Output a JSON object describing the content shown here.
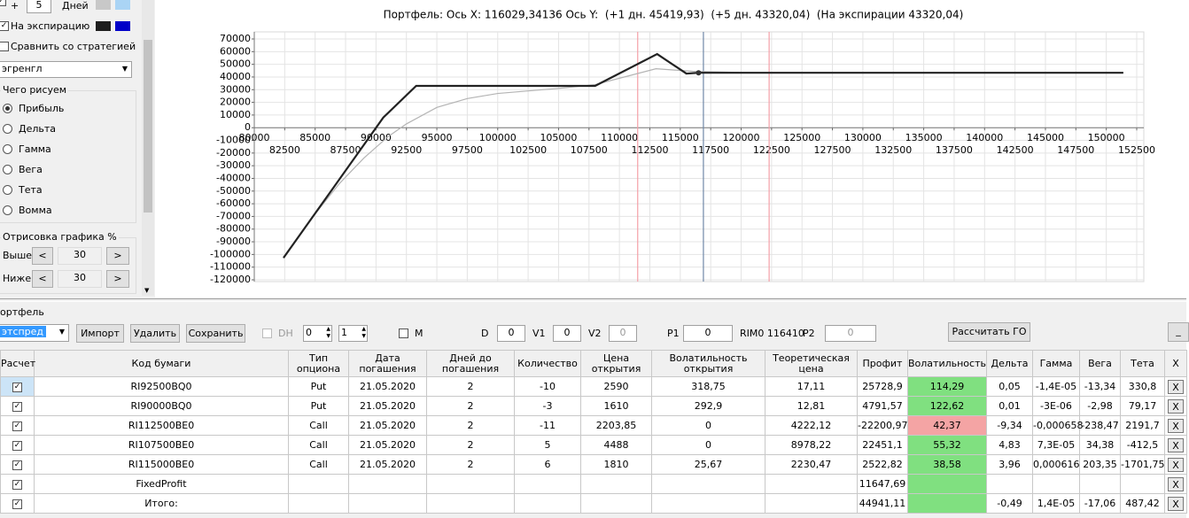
{
  "left_panel": {
    "plus": "+",
    "days_value": "5",
    "days_label": "Дней",
    "expiry": "На экспирацию",
    "compare": "Сравнить со стратегией",
    "strategy": "эгренгл",
    "group_title": "Чего рисуем",
    "options": [
      "Прибыль",
      "Дельта",
      "Гамма",
      "Вега",
      "Тета",
      "Вомма"
    ],
    "selected": 0,
    "range_title": "Отрисовка графика %",
    "above": "Выше",
    "below": "Ниже",
    "above_value": "30",
    "below_value": "30",
    "less": "<",
    "more": ">"
  },
  "chart_data": {
    "type": "line",
    "title": "Портфель: Ось X: 116029,34136 Ось Y:  (+1 дн. 45419,93)  (+5 дн. 43320,04)  (На экспирации 43320,04)",
    "xlim": [
      80000,
      152500
    ],
    "ylim": [
      -120000,
      70000
    ],
    "xticks": [
      80000,
      82500,
      85000,
      87500,
      90000,
      92500,
      95000,
      97500,
      100000,
      102500,
      105000,
      107500,
      110000,
      112500,
      115000,
      117500,
      120000,
      122500,
      125000,
      127500,
      130000,
      132500,
      135000,
      137500,
      140000,
      142500,
      145000,
      147500,
      150000,
      152500
    ],
    "yticks": [
      70000,
      60000,
      50000,
      40000,
      30000,
      20000,
      10000,
      0,
      -10000,
      -20000,
      -30000,
      -40000,
      -50000,
      -60000,
      -70000,
      -80000,
      -90000,
      -100000,
      -110000,
      -120000
    ],
    "grid": true,
    "series": [
      {
        "color": "#b4b4b4",
        "x": [
          82400,
          85000,
          87000,
          89000,
          91000,
          92500,
          95000,
          97500,
          100000,
          105000,
          108000,
          110000,
          113000,
          116000,
          120000,
          122500
        ],
        "values": [
          -102000,
          -68000,
          -44000,
          -24000,
          -7000,
          3000,
          16000,
          23000,
          27000,
          31000,
          34000,
          39000,
          46500,
          44500,
          43600,
          43320
        ]
      },
      {
        "color": "#222222",
        "x": [
          82400,
          90600,
          93300,
          108000,
          113100,
          115500,
          116500,
          151400
        ],
        "values": [
          -102700,
          8000,
          33000,
          33000,
          58100,
          42700,
          43320,
          43320
        ]
      }
    ],
    "vlines": [
      {
        "x": 111500,
        "color": "#f4a0a8"
      },
      {
        "x": 116900,
        "color": "#7088a8"
      },
      {
        "x": 122300,
        "color": "#f4a0a8"
      }
    ],
    "marker": {
      "x": 116500,
      "y": 43320,
      "color": "#333333"
    }
  },
  "toolbar": {
    "section": "ортфель",
    "portfolio": "этспред",
    "import": "Импорт",
    "delete": "Удалить",
    "save": "Сохранить",
    "dh": "DH",
    "spin1": "0",
    "spin2": "1",
    "m": "M",
    "d_label": "D",
    "d_value": "0",
    "v1_label": "V1",
    "v1_value": "0",
    "v2_label": "V2",
    "v2_value": "0",
    "p1_label": "P1",
    "p1_value": "0",
    "rim": "RIM0 116410",
    "p2_label": "P2",
    "p2_value": "0",
    "calc": "Рассчитать ГО",
    "minimize": "_"
  },
  "table": {
    "headers": [
      "Расчет",
      "Код бумаги",
      "Тип опциона",
      "Дата погашения",
      "Дней до погашения",
      "Количество",
      "Цена открытия",
      "Волатильность открытия",
      "Теоретическая цена",
      "Профит",
      "Волатильность",
      "Дельта",
      "Гамма",
      "Вега",
      "Тета",
      "X"
    ],
    "rows": [
      {
        "cells": [
          "RI92500BQ0",
          "Put",
          "21.05.2020",
          "2",
          "-10",
          "2590",
          "318,75",
          "17,11",
          "25728,9",
          "114,29",
          "0,05",
          "-1,4E-05",
          "-13,34",
          "330,8",
          "X"
        ],
        "profit_color": "#80e080"
      },
      {
        "cells": [
          "RI90000BQ0",
          "Put",
          "21.05.2020",
          "2",
          "-3",
          "1610",
          "292,9",
          "12,81",
          "4791,57",
          "122,62",
          "0,01",
          "-3E-06",
          "-2,98",
          "79,17",
          "X"
        ],
        "profit_color": "#80e080"
      },
      {
        "cells": [
          "RI112500BE0",
          "Call",
          "21.05.2020",
          "2",
          "-11",
          "2203,85",
          "0",
          "4222,12",
          "-22200,97",
          "42,37",
          "-9,34",
          "-0,000658",
          "-238,47",
          "2191,7",
          "X"
        ],
        "profit_color": "#f4a4a4"
      },
      {
        "cells": [
          "RI107500BE0",
          "Call",
          "21.05.2020",
          "2",
          "5",
          "4488",
          "0",
          "8978,22",
          "22451,1",
          "55,32",
          "4,83",
          "7,3E-05",
          "34,38",
          "-412,5",
          "X"
        ],
        "profit_color": "#80e080"
      },
      {
        "cells": [
          "RI115000BE0",
          "Call",
          "21.05.2020",
          "2",
          "6",
          "1810",
          "25,67",
          "2230,47",
          "2522,82",
          "38,58",
          "3,96",
          "0,000616",
          "203,35",
          "-1701,75",
          "X"
        ],
        "profit_color": "#80e080"
      },
      {
        "cells": [
          "FixedProfit",
          null,
          null,
          null,
          null,
          null,
          null,
          null,
          "11647,69",
          null,
          null,
          null,
          null,
          null,
          "X"
        ],
        "profit_color": "#80e080"
      },
      {
        "cells": [
          "Итого:",
          null,
          null,
          null,
          null,
          null,
          null,
          null,
          "44941,11",
          null,
          "-0,49",
          "1,4E-05",
          "-17,06",
          "487,42",
          "X"
        ],
        "profit_color": "#80e080"
      }
    ]
  }
}
